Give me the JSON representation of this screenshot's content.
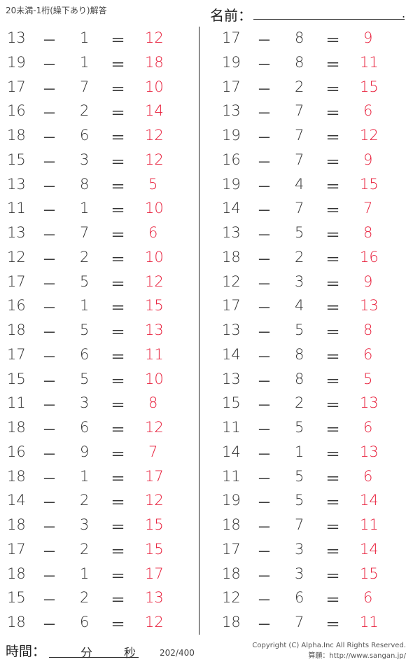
{
  "header": {
    "title": "20未満-1桁(繰下あり)解答",
    "name_label": "名前：",
    "name_end": "."
  },
  "operators": {
    "minus": "－",
    "equals": "＝"
  },
  "colors": {
    "answer": "#e8203c",
    "text": "#333333"
  },
  "left_problems": [
    [
      "13",
      "1",
      "12"
    ],
    [
      "19",
      "1",
      "18"
    ],
    [
      "17",
      "7",
      "10"
    ],
    [
      "16",
      "2",
      "14"
    ],
    [
      "18",
      "6",
      "12"
    ],
    [
      "15",
      "3",
      "12"
    ],
    [
      "13",
      "8",
      "5"
    ],
    [
      "11",
      "1",
      "10"
    ],
    [
      "13",
      "7",
      "6"
    ],
    [
      "12",
      "2",
      "10"
    ],
    [
      "17",
      "5",
      "12"
    ],
    [
      "16",
      "1",
      "15"
    ],
    [
      "18",
      "5",
      "13"
    ],
    [
      "17",
      "6",
      "11"
    ],
    [
      "15",
      "5",
      "10"
    ],
    [
      "11",
      "3",
      "8"
    ],
    [
      "18",
      "6",
      "12"
    ],
    [
      "16",
      "9",
      "7"
    ],
    [
      "18",
      "1",
      "17"
    ],
    [
      "14",
      "2",
      "12"
    ],
    [
      "18",
      "3",
      "15"
    ],
    [
      "17",
      "2",
      "15"
    ],
    [
      "18",
      "1",
      "17"
    ],
    [
      "15",
      "2",
      "13"
    ],
    [
      "18",
      "6",
      "12"
    ]
  ],
  "right_problems": [
    [
      "17",
      "8",
      "9"
    ],
    [
      "19",
      "8",
      "11"
    ],
    [
      "17",
      "2",
      "15"
    ],
    [
      "13",
      "7",
      "6"
    ],
    [
      "19",
      "7",
      "12"
    ],
    [
      "16",
      "7",
      "9"
    ],
    [
      "19",
      "4",
      "15"
    ],
    [
      "14",
      "7",
      "7"
    ],
    [
      "13",
      "5",
      "8"
    ],
    [
      "18",
      "2",
      "16"
    ],
    [
      "12",
      "3",
      "9"
    ],
    [
      "17",
      "4",
      "13"
    ],
    [
      "13",
      "5",
      "8"
    ],
    [
      "14",
      "8",
      "6"
    ],
    [
      "13",
      "8",
      "5"
    ],
    [
      "15",
      "2",
      "13"
    ],
    [
      "11",
      "5",
      "6"
    ],
    [
      "14",
      "1",
      "13"
    ],
    [
      "11",
      "5",
      "6"
    ],
    [
      "19",
      "5",
      "14"
    ],
    [
      "18",
      "7",
      "11"
    ],
    [
      "17",
      "3",
      "14"
    ],
    [
      "18",
      "3",
      "15"
    ],
    [
      "12",
      "6",
      "6"
    ],
    [
      "18",
      "7",
      "11"
    ]
  ],
  "footer": {
    "time_label": "時間：",
    "minutes": "分",
    "seconds": "秒",
    "page": "202/400",
    "copyright": "Copyright (C) Alpha.Inc All Rights Reserved.",
    "site": "算願：http://www.sangan.jp/"
  }
}
